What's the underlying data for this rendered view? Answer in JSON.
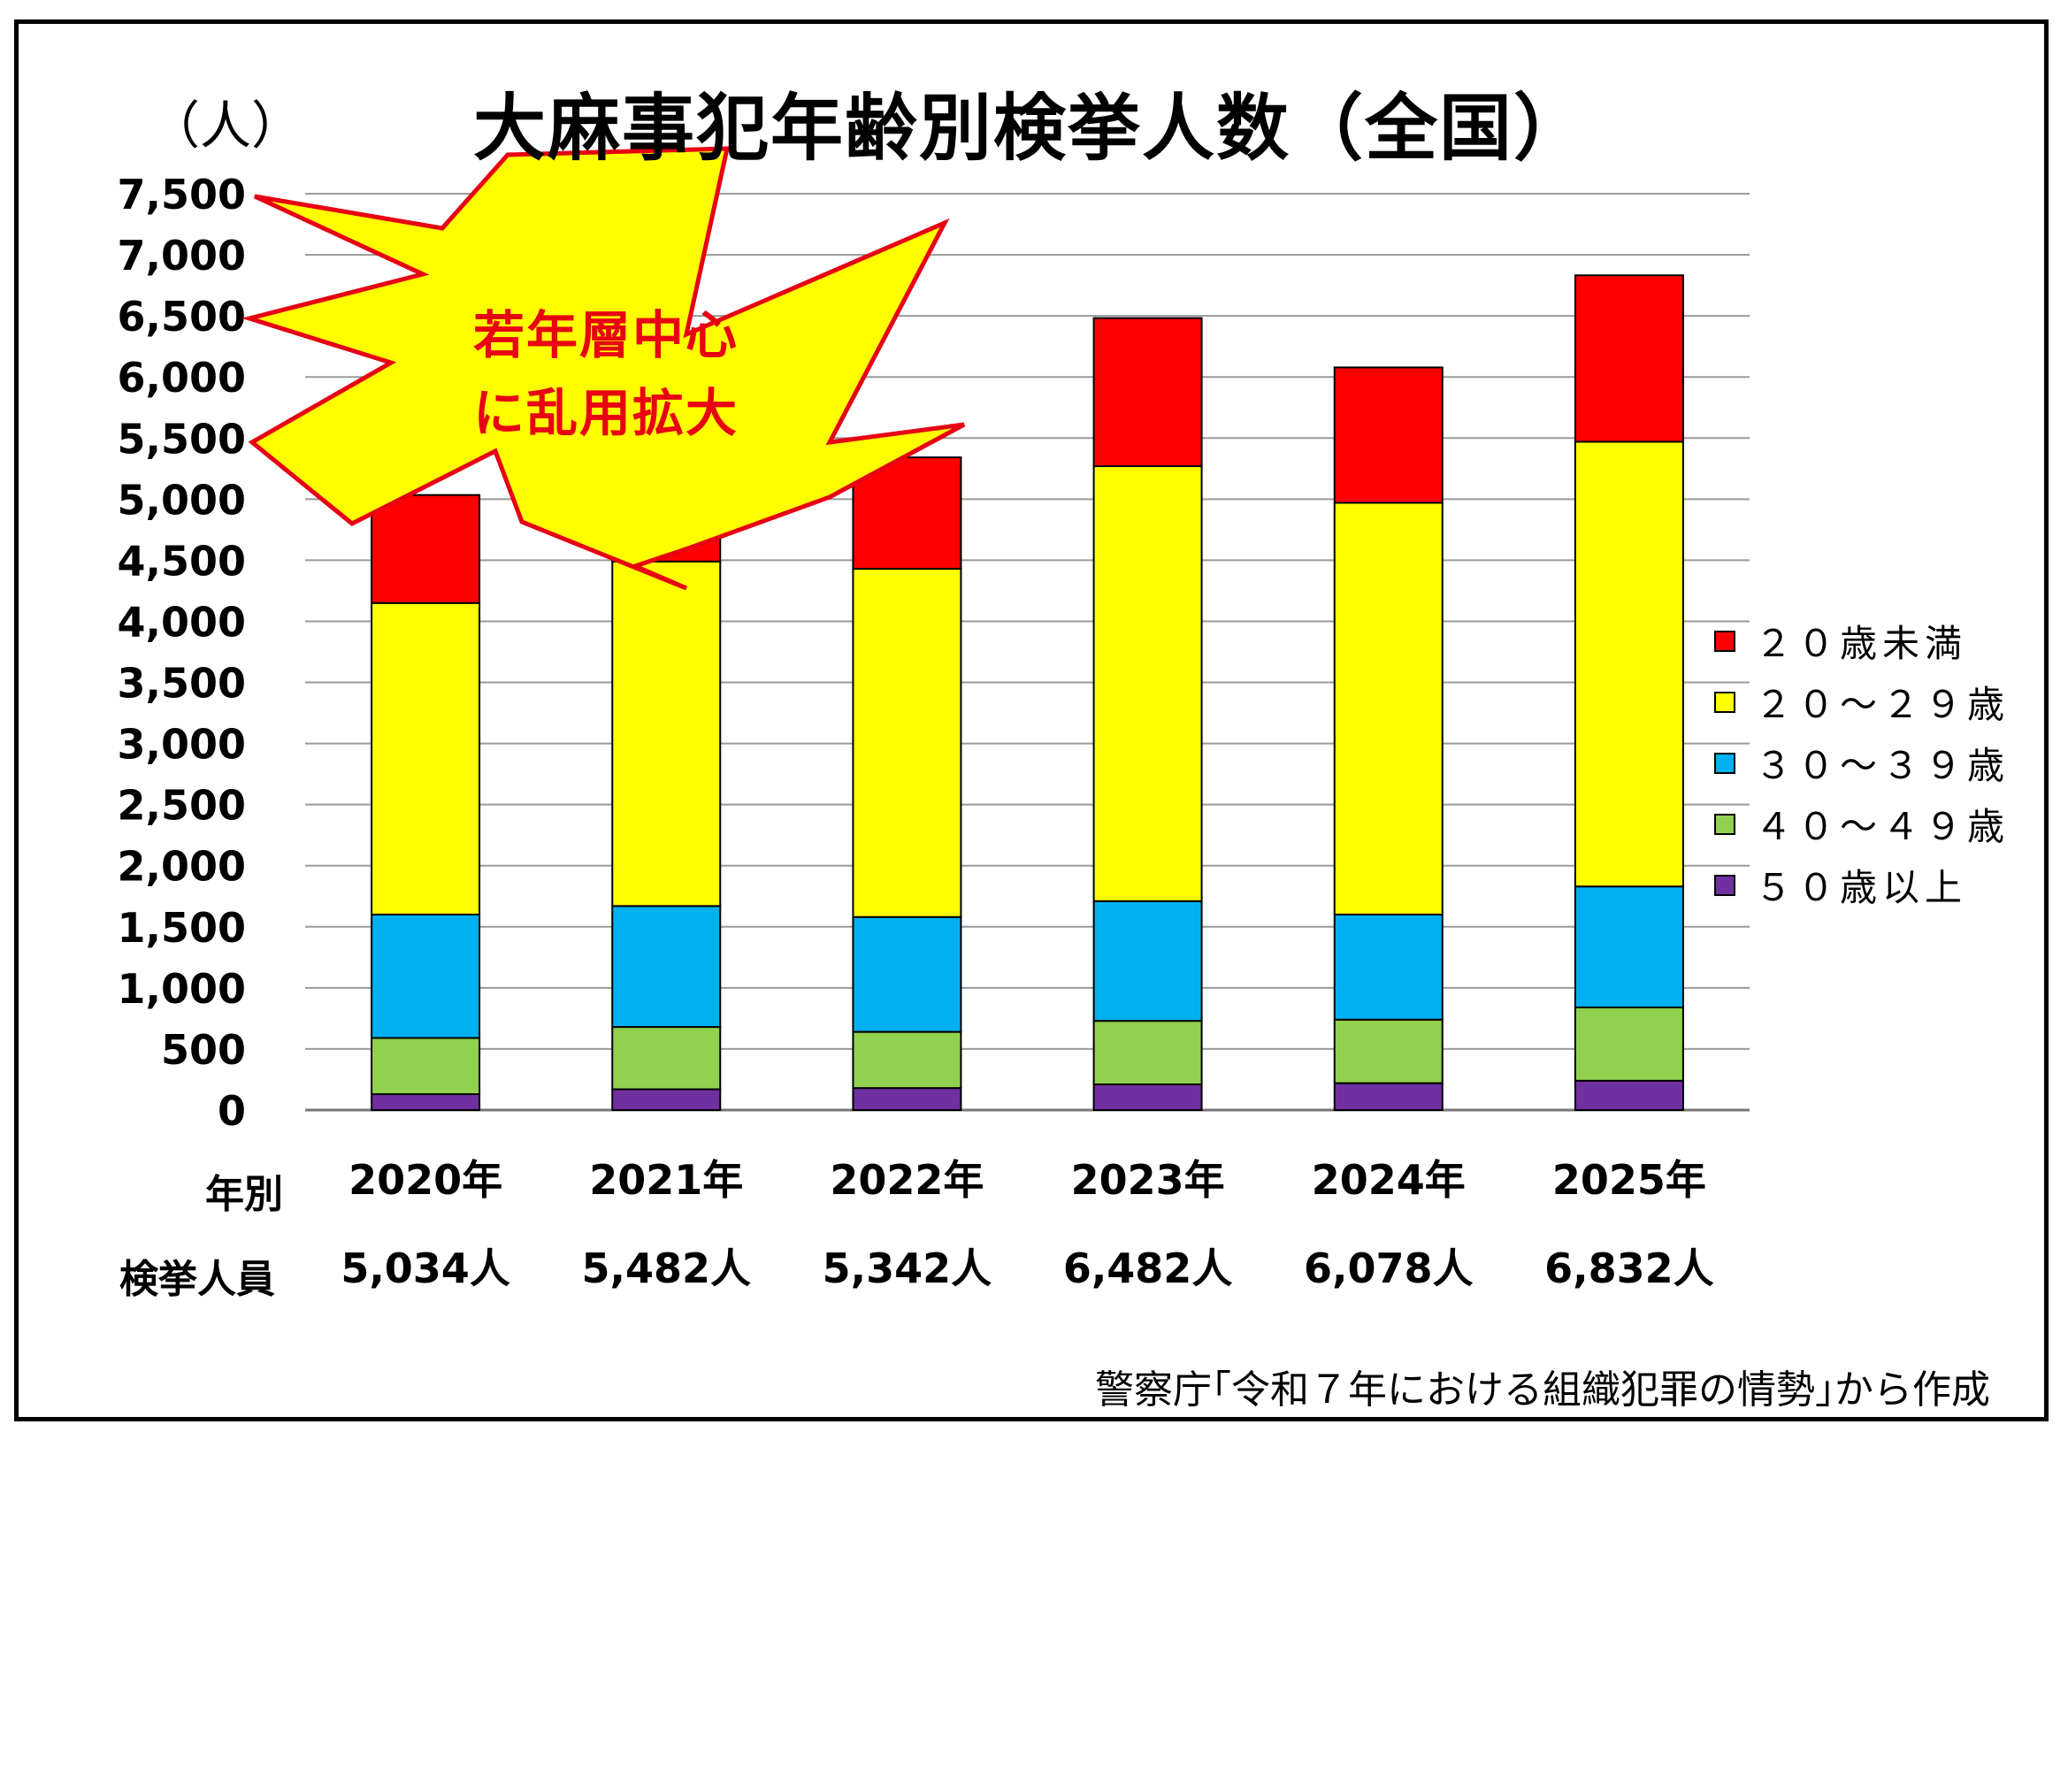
{
  "chart_data": {
    "type": "bar",
    "stacked": true,
    "title": "大麻事犯年齢別検挙人数（全国）",
    "ylabel": "（人）",
    "ylim": [
      0,
      7500
    ],
    "yticks": [
      0,
      500,
      1000,
      1500,
      2000,
      2500,
      3000,
      3500,
      4000,
      4500,
      5000,
      5500,
      6000,
      6500,
      7000,
      7500
    ],
    "ytick_labels": [
      "0",
      "500",
      "1,000",
      "1,500",
      "2,000",
      "2,500",
      "3,000",
      "3,500",
      "4,000",
      "4,500",
      "5,000",
      "5,500",
      "6,000",
      "6,500",
      "7,000",
      "7,500"
    ],
    "grid": true,
    "legend_position": "right",
    "categories": [
      "2020年",
      "2021年",
      "2022年",
      "2023年",
      "2024年",
      "2025年"
    ],
    "series": [
      {
        "name": "５０歳以上",
        "color": "#7030a0",
        "values": [
          130,
          170,
          180,
          210,
          220,
          240
        ]
      },
      {
        "name": "４０～４９歳",
        "color": "#92d050",
        "values": [
          460,
          510,
          460,
          520,
          520,
          600
        ]
      },
      {
        "name": "３０～３９歳",
        "color": "#00b0f0",
        "values": [
          1010,
          990,
          940,
          980,
          860,
          990
        ]
      },
      {
        "name": "２０～２９歳",
        "color": "#ffff00",
        "values": [
          2550,
          2820,
          2850,
          3560,
          3370,
          3640
        ]
      },
      {
        "name": "２０歳未満",
        "color": "#ff0000",
        "values": [
          884,
          992,
          912,
          1212,
          1108,
          1362
        ]
      }
    ],
    "legend_order": [
      "２０歳未満",
      "２０～２９歳",
      "３０～３９歳",
      "４０～４９歳",
      "５０歳以上"
    ],
    "totals_row_label_year": "年別",
    "totals_row_label": "検挙人員",
    "totals": [
      "5,034人",
      "5,482人",
      "5,342人",
      "6,482人",
      "6,078人",
      "6,832人"
    ],
    "annotation": {
      "lines": [
        "若年層中心",
        "に乱用拡大"
      ],
      "text_color": "#e60012",
      "fill_color": "#ffff00",
      "stroke_color": "#e60012"
    },
    "source": "警察庁｢令和７年における組織犯罪の情勢｣から作成"
  }
}
